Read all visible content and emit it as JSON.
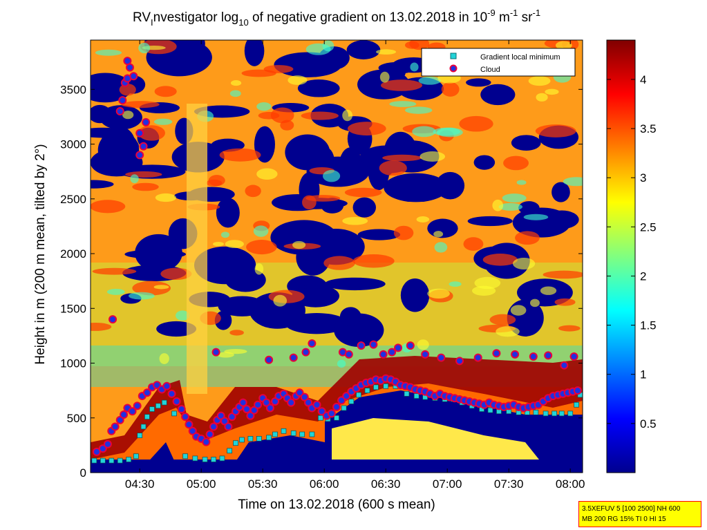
{
  "title": {
    "prefix": "RV",
    "sub_l": "I",
    "part1": "nvestigator log",
    "sub_10": "10",
    "part2": " of negative gradient on 13.02.2018 in 10",
    "sup_m9": "-9",
    "part3": " m",
    "sup_m1a": "-1",
    "part4": " sr",
    "sup_m1b": "-1"
  },
  "legend": {
    "items": [
      {
        "label": "Gradient local minimum",
        "marker": "square",
        "color": "#22d3d8"
      },
      {
        "label": "Cloud",
        "marker": "circle",
        "color": "#e8003c"
      }
    ]
  },
  "info_box": {
    "line1": "3.5XEFUV 5 [100 2500] NH 600",
    "line2": "MB 200 RG 15% TI 0 HI 15"
  },
  "colors": {
    "colormap": [
      "#00008f",
      "#0000ff",
      "#0080ff",
      "#00ffff",
      "#80ff80",
      "#ffff00",
      "#ff8000",
      "#ff0000",
      "#800000"
    ],
    "gradient_min_marker": "#22d3d8",
    "cloud_marker_edge": "#e8003c",
    "cloud_marker_fill": "#2030e0"
  },
  "chart_data": {
    "type": "heatmap",
    "xlabel": "Time on 13.02.2018 (600 s mean)",
    "ylabel": "Height in m (200 m mean, tilted by 2°)",
    "x_range_hours": [
      4.1,
      8.1
    ],
    "y_range_m": [
      0,
      3950
    ],
    "x_ticks": [
      "04:30",
      "05:00",
      "05:30",
      "06:00",
      "06:30",
      "07:00",
      "07:30",
      "08:00"
    ],
    "x_tick_hours": [
      4.5,
      5.0,
      5.5,
      6.0,
      6.5,
      7.0,
      7.5,
      8.0
    ],
    "y_ticks": [
      0,
      500,
      1000,
      1500,
      2000,
      2500,
      3000,
      3500
    ],
    "colorbar": {
      "range": [
        0,
        4.4
      ],
      "ticks": [
        "0.5",
        "1",
        "1.5",
        "2",
        "2.5",
        "3",
        "3.5",
        "4"
      ],
      "tick_values": [
        0.5,
        1,
        1.5,
        2,
        2.5,
        3,
        3.5,
        4
      ]
    },
    "series": [
      {
        "name": "Gradient local minimum",
        "points": [
          [
            4.13,
            110
          ],
          [
            4.2,
            110
          ],
          [
            4.27,
            110
          ],
          [
            4.34,
            110
          ],
          [
            4.41,
            120
          ],
          [
            4.47,
            150
          ],
          [
            4.5,
            340
          ],
          [
            4.53,
            420
          ],
          [
            4.56,
            510
          ],
          [
            4.6,
            580
          ],
          [
            4.65,
            610
          ],
          [
            4.7,
            640
          ],
          [
            4.78,
            540
          ],
          [
            4.87,
            150
          ],
          [
            4.95,
            130
          ],
          [
            5.03,
            120
          ],
          [
            5.1,
            120
          ],
          [
            5.17,
            130
          ],
          [
            5.23,
            200
          ],
          [
            5.28,
            270
          ],
          [
            5.33,
            300
          ],
          [
            5.4,
            310
          ],
          [
            5.47,
            310
          ],
          [
            5.55,
            320
          ],
          [
            5.6,
            350
          ],
          [
            5.67,
            380
          ],
          [
            5.75,
            360
          ],
          [
            5.82,
            350
          ],
          [
            5.9,
            350
          ],
          [
            5.97,
            500
          ],
          [
            6.03,
            490
          ],
          [
            6.1,
            500
          ],
          [
            6.16,
            590
          ],
          [
            6.22,
            650
          ],
          [
            6.28,
            710
          ],
          [
            6.35,
            750
          ],
          [
            6.42,
            780
          ],
          [
            6.5,
            790
          ],
          [
            6.58,
            790
          ],
          [
            6.67,
            720
          ],
          [
            6.75,
            700
          ],
          [
            6.82,
            690
          ],
          [
            6.9,
            680
          ],
          [
            6.98,
            670
          ],
          [
            7.05,
            670
          ],
          [
            7.12,
            640
          ],
          [
            7.2,
            610
          ],
          [
            7.28,
            580
          ],
          [
            7.35,
            570
          ],
          [
            7.42,
            560
          ],
          [
            7.5,
            560
          ],
          [
            7.58,
            550
          ],
          [
            7.65,
            550
          ],
          [
            7.72,
            550
          ],
          [
            7.8,
            540
          ],
          [
            7.87,
            540
          ],
          [
            7.93,
            540
          ],
          [
            8.0,
            540
          ],
          [
            8.05,
            620
          ],
          [
            8.08,
            710
          ]
        ]
      },
      {
        "name": "Cloud",
        "points": [
          [
            4.15,
            190
          ],
          [
            4.2,
            220
          ],
          [
            4.24,
            260
          ],
          [
            4.27,
            380
          ],
          [
            4.3,
            420
          ],
          [
            4.34,
            480
          ],
          [
            4.37,
            530
          ],
          [
            4.4,
            590
          ],
          [
            4.44,
            560
          ],
          [
            4.48,
            610
          ],
          [
            4.52,
            700
          ],
          [
            4.56,
            730
          ],
          [
            4.6,
            780
          ],
          [
            4.64,
            800
          ],
          [
            4.68,
            760
          ],
          [
            4.72,
            790
          ],
          [
            4.76,
            720
          ],
          [
            4.8,
            650
          ],
          [
            4.84,
            580
          ],
          [
            4.87,
            510
          ],
          [
            4.9,
            440
          ],
          [
            4.93,
            380
          ],
          [
            4.96,
            330
          ],
          [
            5.0,
            310
          ],
          [
            5.04,
            280
          ],
          [
            5.07,
            350
          ],
          [
            5.1,
            420
          ],
          [
            5.13,
            480
          ],
          [
            5.16,
            520
          ],
          [
            5.19,
            470
          ],
          [
            5.22,
            420
          ],
          [
            5.25,
            510
          ],
          [
            5.28,
            560
          ],
          [
            5.31,
            600
          ],
          [
            5.34,
            640
          ],
          [
            5.37,
            580
          ],
          [
            5.4,
            520
          ],
          [
            5.43,
            570
          ],
          [
            5.46,
            620
          ],
          [
            5.5,
            680
          ],
          [
            5.53,
            640
          ],
          [
            5.56,
            590
          ],
          [
            5.6,
            650
          ],
          [
            5.63,
            700
          ],
          [
            5.67,
            720
          ],
          [
            5.7,
            680
          ],
          [
            5.73,
            640
          ],
          [
            5.77,
            700
          ],
          [
            5.8,
            730
          ],
          [
            5.84,
            690
          ],
          [
            5.87,
            640
          ],
          [
            5.9,
            590
          ],
          [
            5.94,
            620
          ],
          [
            5.98,
            560
          ],
          [
            6.02,
            520
          ],
          [
            6.06,
            540
          ],
          [
            6.1,
            600
          ],
          [
            6.14,
            660
          ],
          [
            6.18,
            700
          ],
          [
            6.22,
            740
          ],
          [
            6.26,
            770
          ],
          [
            6.3,
            800
          ],
          [
            6.34,
            820
          ],
          [
            6.38,
            830
          ],
          [
            6.42,
            850
          ],
          [
            6.46,
            840
          ],
          [
            6.5,
            860
          ],
          [
            6.54,
            850
          ],
          [
            6.58,
            830
          ],
          [
            6.62,
            800
          ],
          [
            6.66,
            790
          ],
          [
            6.7,
            780
          ],
          [
            6.74,
            760
          ],
          [
            6.78,
            750
          ],
          [
            6.82,
            740
          ],
          [
            6.86,
            720
          ],
          [
            6.9,
            700
          ],
          [
            6.94,
            720
          ],
          [
            6.98,
            700
          ],
          [
            7.02,
            690
          ],
          [
            7.06,
            680
          ],
          [
            7.1,
            670
          ],
          [
            7.14,
            660
          ],
          [
            7.18,
            650
          ],
          [
            7.22,
            640
          ],
          [
            7.26,
            630
          ],
          [
            7.3,
            620
          ],
          [
            7.34,
            640
          ],
          [
            7.38,
            620
          ],
          [
            7.42,
            610
          ],
          [
            7.46,
            600
          ],
          [
            7.5,
            610
          ],
          [
            7.54,
            620
          ],
          [
            7.58,
            600
          ],
          [
            7.62,
            590
          ],
          [
            7.66,
            600
          ],
          [
            7.7,
            610
          ],
          [
            7.74,
            620
          ],
          [
            7.78,
            650
          ],
          [
            7.82,
            680
          ],
          [
            7.86,
            700
          ],
          [
            7.9,
            710
          ],
          [
            7.94,
            720
          ],
          [
            7.98,
            730
          ],
          [
            8.02,
            740
          ],
          [
            8.06,
            750
          ],
          [
            4.28,
            1400
          ],
          [
            4.34,
            3300
          ],
          [
            4.36,
            3400
          ],
          [
            4.38,
            3560
          ],
          [
            4.4,
            3600
          ],
          [
            4.42,
            3700
          ],
          [
            4.4,
            3760
          ],
          [
            4.45,
            3620
          ],
          [
            4.5,
            3100
          ],
          [
            4.53,
            2980
          ],
          [
            4.5,
            2900
          ],
          [
            4.55,
            3200
          ],
          [
            5.12,
            1100
          ],
          [
            5.55,
            1030
          ],
          [
            5.75,
            1050
          ],
          [
            5.85,
            1100
          ],
          [
            5.9,
            1180
          ],
          [
            6.15,
            1100
          ],
          [
            6.2,
            1080
          ],
          [
            6.3,
            1160
          ],
          [
            6.4,
            1170
          ],
          [
            6.48,
            1080
          ],
          [
            6.55,
            1100
          ],
          [
            6.6,
            1140
          ],
          [
            6.7,
            1160
          ],
          [
            6.82,
            1080
          ],
          [
            6.95,
            1050
          ],
          [
            7.1,
            1020
          ],
          [
            7.25,
            1050
          ],
          [
            7.4,
            1090
          ],
          [
            7.55,
            1080
          ],
          [
            7.7,
            1060
          ],
          [
            7.82,
            1070
          ],
          [
            7.95,
            980
          ],
          [
            8.03,
            1060
          ]
        ]
      }
    ]
  }
}
